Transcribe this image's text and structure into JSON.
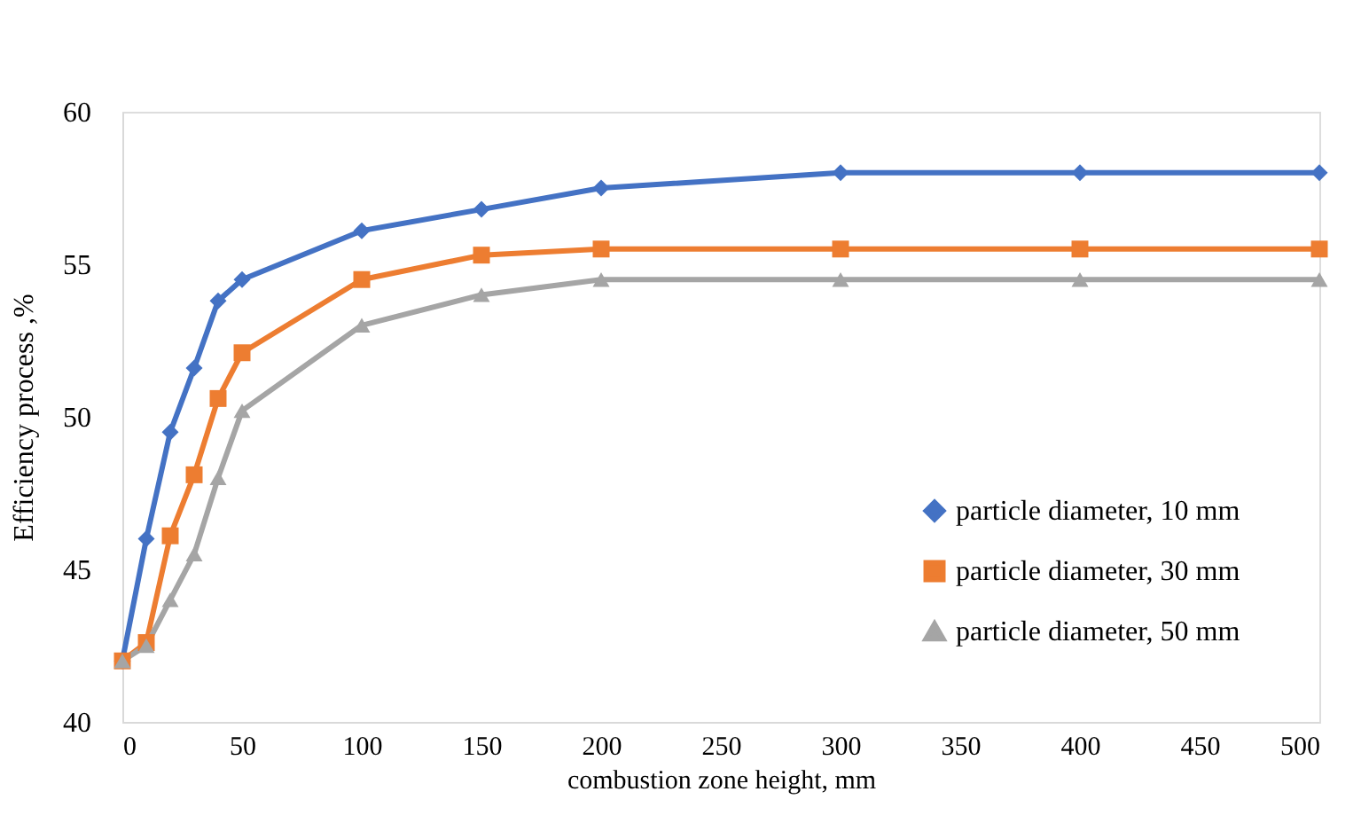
{
  "chart_data": {
    "type": "line",
    "xlabel": "combustion zone height, mm",
    "ylabel": "Efficiency process ,%",
    "x": [
      0,
      10,
      20,
      30,
      40,
      50,
      100,
      150,
      200,
      300,
      400,
      500
    ],
    "series": [
      {
        "name": "particle diameter,  10 mm",
        "color": "#4472c4",
        "marker": "diamond",
        "values": [
          42,
          46,
          49.5,
          51.6,
          53.8,
          54.5,
          56.1,
          56.8,
          57.5,
          58,
          58,
          58
        ]
      },
      {
        "name": "particle diameter, 30 mm",
        "color": "#ed7d31",
        "marker": "square",
        "values": [
          42,
          42.6,
          46.1,
          48.1,
          50.6,
          52.1,
          54.5,
          55.3,
          55.5,
          55.5,
          55.5,
          55.5
        ]
      },
      {
        "name": "particle diameter, 50 mm",
        "color": "#a5a5a5",
        "marker": "triangle",
        "values": [
          42,
          42.5,
          44,
          45.5,
          48,
          50.2,
          53,
          54,
          54.5,
          54.5,
          54.5,
          54.5
        ]
      }
    ],
    "xlim": [
      0,
      500
    ],
    "xticks": [
      0,
      50,
      100,
      150,
      200,
      250,
      300,
      350,
      400,
      450,
      500
    ],
    "ylim": [
      40,
      60
    ],
    "yticks": [
      40,
      45,
      50,
      55,
      60
    ],
    "grid": false,
    "legend": "bottom right",
    "line_style": "solid"
  }
}
